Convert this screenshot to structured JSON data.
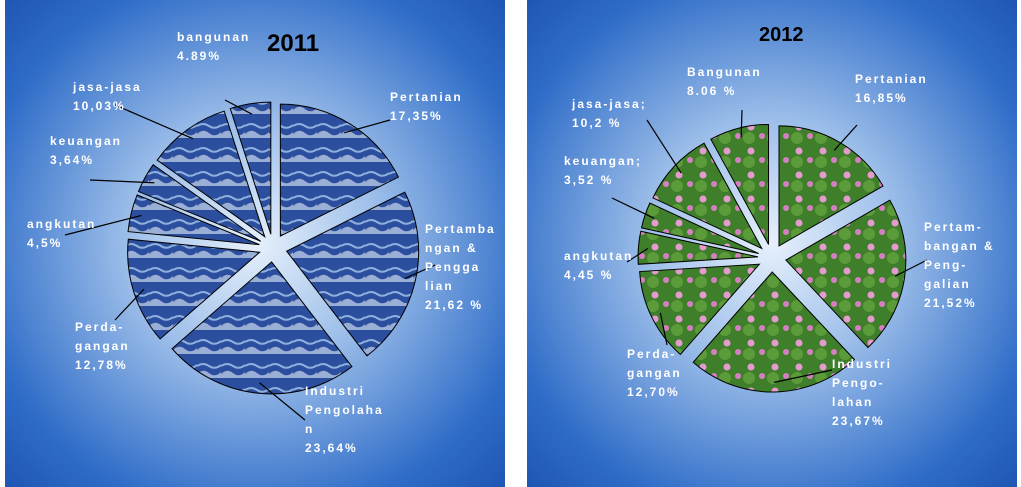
{
  "chart_data": [
    {
      "type": "pie",
      "title": "2011",
      "color": "#2b4f9e",
      "categories": [
        "Pertanian",
        "Pertamba\nngan &\nPengga\nlian",
        "Industri\nPengolaha\nn",
        "Perda-\ngangan",
        "angkutan",
        "keuangan",
        "jasa-jasa",
        "bangunan"
      ],
      "values": [
        17.35,
        21.62,
        23.64,
        12.78,
        4.5,
        3.64,
        10.03,
        4.89
      ],
      "value_labels": [
        "17,35%",
        "21,62  %",
        "23,64%",
        "12,78%",
        "4,5%",
        "3,64%",
        "10,03%",
        "4.89%"
      ]
    },
    {
      "type": "pie",
      "title": "2012",
      "color": "#3f7f2c",
      "categories": [
        "Pertanian",
        "Pertam-\nbangan &\nPeng-\ngalian",
        "Industri\nPengo-\nlahan",
        "Perda-\ngangan",
        "angkutan",
        "keuangan;",
        "jasa-jasa;",
        "Bangunan"
      ],
      "values": [
        16.85,
        21.52,
        23.67,
        12.7,
        4.45,
        3.52,
        10.2,
        8.06
      ],
      "value_labels": [
        "16,85%",
        "21,52%",
        "23,67%",
        "12,70%",
        "4,45 %",
        "3,52 %",
        "10,2 %",
        "8.06 %"
      ]
    }
  ]
}
